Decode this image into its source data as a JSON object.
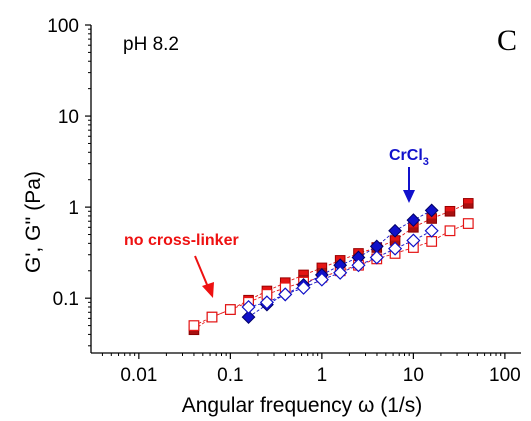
{
  "chart_data": {
    "type": "scatter",
    "xlabel": "Angular frequency ω (1/s)",
    "ylabel": "G', G'' (Pa)",
    "x_scale": "log",
    "y_scale": "log",
    "xlim": [
      0.003,
      150
    ],
    "ylim": [
      0.025,
      100
    ],
    "x_ticks": [
      0.01,
      0.1,
      1,
      10,
      100
    ],
    "x_tick_labels": [
      "0.01",
      "0.1",
      "1",
      "10",
      "100"
    ],
    "y_ticks": [
      0.1,
      1,
      10,
      100
    ],
    "y_tick_labels": [
      "0.1",
      "1",
      "10",
      "100"
    ],
    "grid": false,
    "annotations": {
      "condition": "pH 8.2",
      "panel_label": "C",
      "no_crosslinker": "no cross-linker",
      "crcl_main": "CrCl",
      "crcl_sub": "3"
    },
    "colors": {
      "red": "#e41414",
      "blue": "#1010c8",
      "red_dark": "#b01010"
    },
    "series": [
      {
        "style": "filled-square",
        "color": "#e41414",
        "x": [
          0.04,
          0.063,
          0.1,
          0.158,
          0.251,
          0.398,
          0.631,
          1.0,
          1.585,
          2.512,
          3.981,
          6.31,
          10,
          15.85,
          25.12,
          39.81
        ],
        "y": [
          0.045,
          0.062,
          0.075,
          0.095,
          0.12,
          0.148,
          0.18,
          0.215,
          0.26,
          0.31,
          0.36,
          0.43,
          0.6,
          0.75,
          0.9,
          1.1
        ]
      },
      {
        "style": "open-square",
        "color": "#e41414",
        "x": [
          0.04,
          0.063,
          0.1,
          0.158,
          0.251,
          0.398,
          0.631,
          1.0,
          1.585,
          2.512,
          3.981,
          6.31,
          10,
          15.85,
          25.12,
          39.81
        ],
        "y": [
          0.05,
          0.062,
          0.075,
          0.09,
          0.11,
          0.13,
          0.15,
          0.17,
          0.2,
          0.23,
          0.27,
          0.31,
          0.36,
          0.42,
          0.55,
          0.66
        ]
      },
      {
        "style": "filled-diamond",
        "color": "#1010c8",
        "x": [
          0.158,
          0.251,
          0.398,
          0.631,
          1.0,
          1.585,
          2.512,
          3.981,
          6.31,
          10,
          15.85
        ],
        "y": [
          0.062,
          0.085,
          0.11,
          0.14,
          0.18,
          0.23,
          0.28,
          0.37,
          0.55,
          0.72,
          0.92
        ]
      },
      {
        "style": "open-diamond",
        "color": "#1010c8",
        "x": [
          0.158,
          0.251,
          0.398,
          0.631,
          1.0,
          1.585,
          2.512,
          3.981,
          6.31,
          10,
          15.85
        ],
        "y": [
          0.08,
          0.09,
          0.11,
          0.13,
          0.16,
          0.19,
          0.23,
          0.28,
          0.35,
          0.43,
          0.55
        ]
      }
    ]
  }
}
